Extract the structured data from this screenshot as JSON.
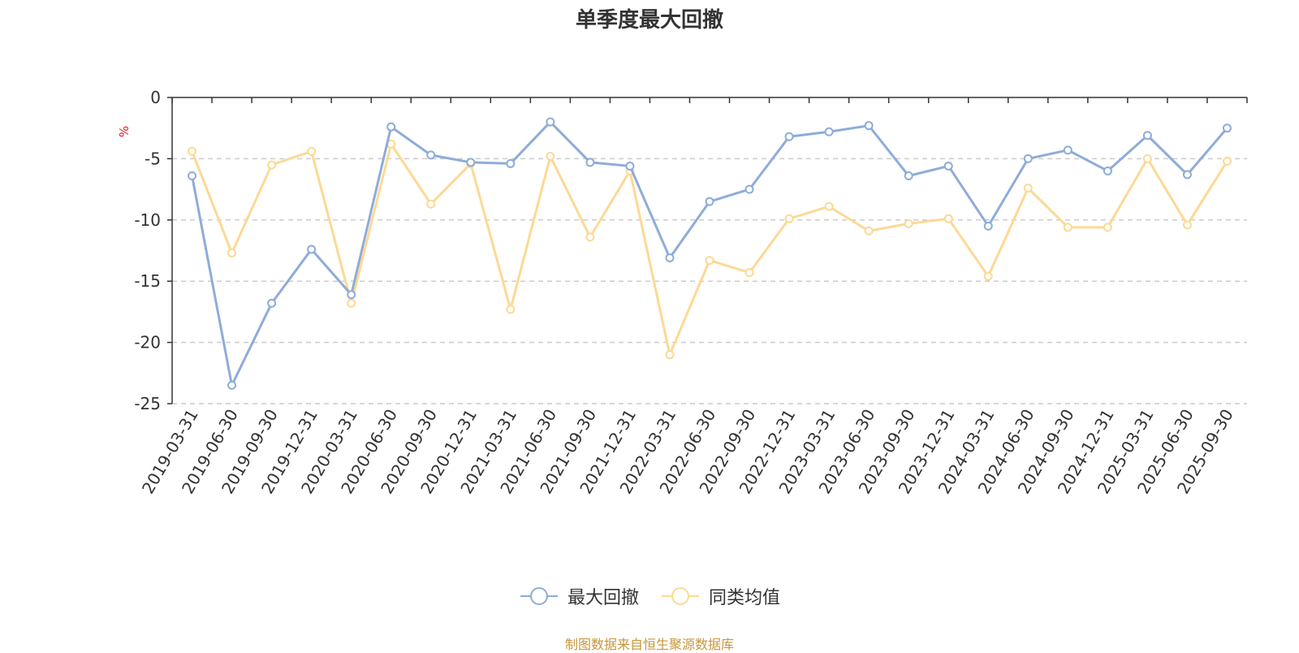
{
  "chart_data": {
    "type": "line",
    "title": "单季度最大回撤",
    "ylabel": "%",
    "ylim": [
      -25,
      0
    ],
    "yticks": [
      0,
      -5,
      -10,
      -15,
      -20,
      -25
    ],
    "grid": "horizontal dashed",
    "legend_position": "bottom-center",
    "categories": [
      "2019-03-31",
      "2019-06-30",
      "2019-09-30",
      "2019-12-31",
      "2020-03-31",
      "2020-06-30",
      "2020-09-30",
      "2020-12-31",
      "2021-03-31",
      "2021-06-30",
      "2021-09-30",
      "2021-12-31",
      "2022-03-31",
      "2022-06-30",
      "2022-09-30",
      "2022-12-31",
      "2023-03-31",
      "2023-06-30",
      "2023-09-30",
      "2023-12-31",
      "2024-03-31",
      "2024-06-30",
      "2024-09-30",
      "2024-12-31",
      "2025-03-31",
      "2025-06-30",
      "2025-09-30"
    ],
    "series": [
      {
        "name": "最大回撤",
        "color": "#8eacd9",
        "values": [
          -6.4,
          -23.5,
          -16.8,
          -12.4,
          -16.1,
          -2.4,
          -4.7,
          -5.3,
          -5.4,
          -2.0,
          -5.3,
          -5.6,
          -13.1,
          -8.5,
          -7.5,
          -3.2,
          -2.8,
          -2.3,
          -6.4,
          -5.6,
          -10.5,
          -5.0,
          -4.3,
          -6.0,
          -3.1,
          -6.3,
          -2.5
        ]
      },
      {
        "name": "同类均值",
        "color": "#fcd994",
        "values": [
          -4.4,
          -12.7,
          -5.5,
          -4.4,
          -16.8,
          -3.8,
          -8.7,
          -5.4,
          -17.3,
          -4.8,
          -11.4,
          -6.0,
          -21.0,
          -13.3,
          -14.3,
          -9.9,
          -8.9,
          -10.9,
          -10.3,
          -9.9,
          -14.6,
          -7.4,
          -10.6,
          -10.6,
          -5.0,
          -10.4,
          -5.2
        ]
      }
    ]
  },
  "footer": {
    "source": "制图数据来自恒生聚源数据库"
  }
}
